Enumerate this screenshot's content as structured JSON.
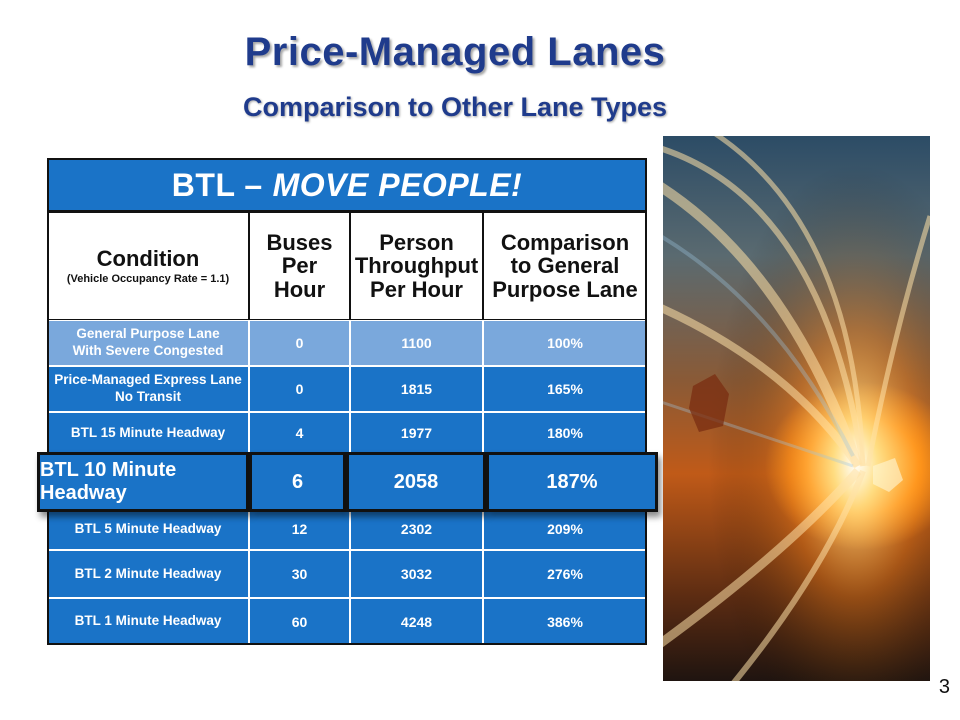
{
  "slide": {
    "title": "Price-Managed Lanes",
    "subtitle": "Comparison to Other Lane Types",
    "page_number": "3"
  },
  "table": {
    "banner_prefix": "BTL –",
    "banner_emphasis": "MOVE PEOPLE!",
    "headers": {
      "condition": "Condition",
      "condition_note": "(Vehicle Occupancy Rate = 1.1)",
      "buses": "Buses Per Hour",
      "throughput": "Person Throughput Per Hour",
      "comparison": "Comparison to General Purpose Lane"
    },
    "rows": [
      {
        "condition": "General Purpose Lane With Severe Congested",
        "buses": "0",
        "throughput": "1100",
        "comparison": "100%"
      },
      {
        "condition": "Price-Managed Express Lane No Transit",
        "buses": "0",
        "throughput": "1815",
        "comparison": "165%"
      },
      {
        "condition": "BTL 15 Minute Headway",
        "buses": "4",
        "throughput": "1977",
        "comparison": "180%"
      },
      {
        "condition": "BTL 10 Minute Headway",
        "buses": "6",
        "throughput": "2058",
        "comparison": "187%"
      },
      {
        "condition": "BTL 5 Minute Headway",
        "buses": "12",
        "throughput": "2302",
        "comparison": "209%"
      },
      {
        "condition": "BTL 2 Minute Headway",
        "buses": "30",
        "throughput": "3032",
        "comparison": "276%"
      },
      {
        "condition": "BTL 1 Minute Headway",
        "buses": "60",
        "throughput": "4248",
        "comparison": "386%"
      }
    ]
  },
  "colors": {
    "title": "#1f3b8c",
    "table_blue": "#1a73c7",
    "gp_row_blue": "#7aa8dc"
  }
}
